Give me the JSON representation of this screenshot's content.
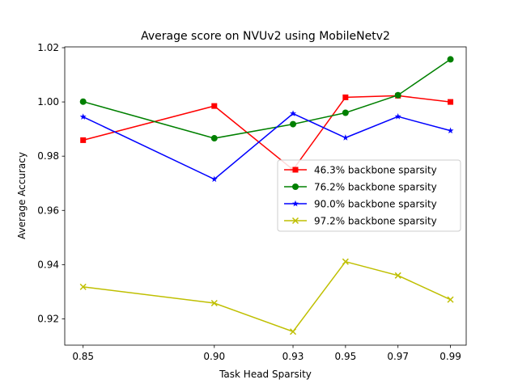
{
  "chart_data": {
    "type": "line",
    "title": "Average score on NVUv2 using MobileNetv2",
    "xlabel": "Task Head Sparsity",
    "ylabel": "Average Accuracy",
    "x": [
      0.85,
      0.9,
      0.93,
      0.95,
      0.97,
      0.99
    ],
    "x_tick_labels": [
      "0.85",
      "0.90",
      "0.93",
      "0.95",
      "0.97",
      "0.99"
    ],
    "xlim": [
      0.843,
      0.996
    ],
    "ylim": [
      0.9103,
      1.0203
    ],
    "y_ticks": [
      0.92,
      0.94,
      0.96,
      0.98,
      1.0,
      1.02
    ],
    "y_tick_labels": [
      "0.92",
      "0.94",
      "0.96",
      "0.98",
      "1.00",
      "1.02"
    ],
    "grid": false,
    "legend_position": "center-right",
    "series": [
      {
        "name": "46.3% backbone sparsity",
        "color": "#ff0000",
        "marker": "square",
        "values": [
          0.9859,
          0.9985,
          0.975,
          1.0017,
          1.0023,
          1.0
        ]
      },
      {
        "name": "76.2% backbone sparsity",
        "color": "#008000",
        "marker": "circle",
        "values": [
          1.0001,
          0.9866,
          0.9918,
          0.996,
          1.0025,
          1.0157
        ]
      },
      {
        "name": "90.0% backbone sparsity",
        "color": "#0000ff",
        "marker": "star",
        "values": [
          0.9945,
          0.9715,
          0.9957,
          0.9868,
          0.9946,
          0.9894
        ]
      },
      {
        "name": "97.2% backbone sparsity",
        "color": "#bfbf00",
        "marker": "x",
        "values": [
          0.9318,
          0.9258,
          0.9153,
          0.9411,
          0.936,
          0.9271
        ]
      }
    ]
  }
}
